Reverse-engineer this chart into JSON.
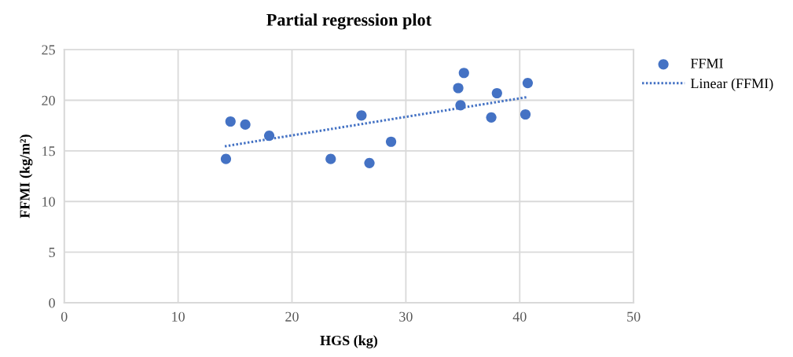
{
  "chart_data": {
    "type": "scatter",
    "title": "Partial regression plot",
    "xlabel": "HGS (kg)",
    "ylabel": "FFMI (kg/m²)",
    "xlim": [
      0,
      50
    ],
    "xticks": [
      0,
      10,
      20,
      30,
      40,
      50
    ],
    "ylim": [
      0,
      25
    ],
    "yticks": [
      0,
      5,
      10,
      15,
      20,
      25
    ],
    "grid": true,
    "legend": "right",
    "marker": "circle",
    "series": [
      {
        "name": "FFMI",
        "color": "#4472c4",
        "x": [
          14.6,
          15.9,
          18.0,
          14.2,
          23.4,
          26.1,
          28.7,
          26.8,
          35.1,
          34.6,
          34.8,
          38.0,
          37.5,
          40.7,
          40.5
        ],
        "values": [
          17.9,
          17.6,
          16.5,
          14.2,
          14.2,
          18.5,
          15.9,
          13.8,
          22.7,
          21.2,
          19.5,
          20.7,
          18.3,
          21.7,
          18.6
        ]
      },
      {
        "name": "Linear (FFMI)",
        "type": "line",
        "color": "#4472c4",
        "line_style": "dotted",
        "marker": "none",
        "x": [
          14.1,
          40.6
        ],
        "values": [
          15.45,
          20.3
        ]
      }
    ]
  }
}
